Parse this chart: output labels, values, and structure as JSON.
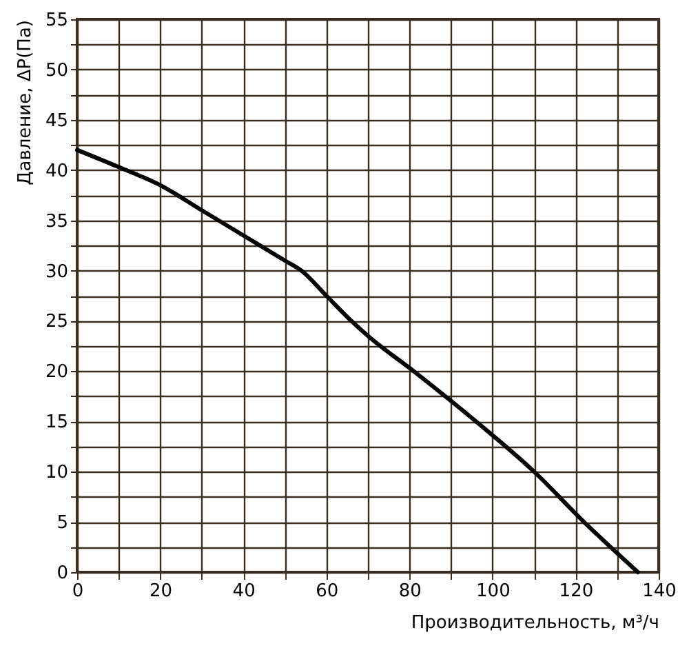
{
  "chart_data": {
    "type": "line",
    "xlabel": "Производительность, м³/ч",
    "ylabel": "Давление, ΔP(Па)",
    "x": [
      0,
      10,
      20,
      30,
      40,
      50,
      54,
      60,
      66,
      70,
      81,
      96,
      110,
      122,
      135
    ],
    "series": [
      {
        "color": "#000000",
        "values": [
          42,
          40.3,
          38.5,
          36,
          33.5,
          31,
          30,
          27.5,
          25,
          23.5,
          20,
          15,
          10,
          5,
          0
        ]
      }
    ],
    "xlim": [
      0,
      140
    ],
    "xticks": [
      0,
      {
        "value": 10,
        "label": null
      },
      20,
      {
        "value": 30,
        "label": null
      },
      40,
      {
        "value": 50,
        "label": null
      },
      60,
      {
        "value": 70,
        "label": null
      },
      80,
      {
        "value": 90,
        "label": null
      },
      100,
      {
        "value": 110,
        "label": null
      },
      120,
      {
        "value": 130,
        "label": null
      },
      140
    ],
    "ylim": [
      0,
      55
    ],
    "yticks": [
      0,
      {
        "value": 2.5,
        "label": null
      },
      5,
      {
        "value": 7.5,
        "label": null
      },
      10,
      {
        "value": 12.5,
        "label": null
      },
      15,
      {
        "value": 17.5,
        "label": null
      },
      20,
      {
        "value": 22.5,
        "label": null
      },
      25,
      {
        "value": 27.5,
        "label": null
      },
      30,
      {
        "value": 32.5,
        "label": null
      },
      35,
      {
        "value": 37.5,
        "label": null
      },
      40,
      {
        "value": 42.5,
        "label": null
      },
      45,
      {
        "value": 47.5,
        "label": null
      },
      50,
      {
        "value": 52.5,
        "label": null
      },
      55
    ],
    "grid": true,
    "marker": "none",
    "line_style": "solid"
  }
}
